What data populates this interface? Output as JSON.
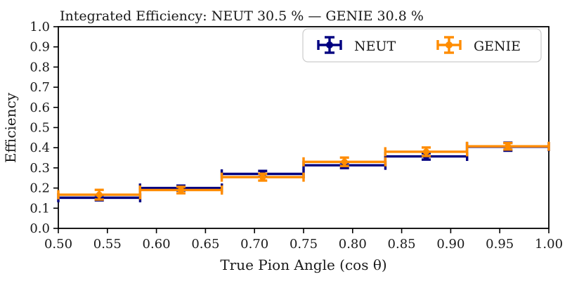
{
  "figure": {
    "background": "#ffffff",
    "text_color": "#1a1a1a"
  },
  "chart_data": {
    "type": "scatter",
    "subtype": "errorbar-histogram-bins",
    "title": "Integrated Efficiency: NEUT 30.5 % — GENIE 30.8 %",
    "xlabel": "True Pion Angle (cos θ)",
    "ylabel": "Efficiency",
    "xlim": [
      0.5,
      1.0
    ],
    "ylim": [
      0.0,
      1.0
    ],
    "grid": false,
    "legend_position": "upper right",
    "marker": "o",
    "x_ticks": [
      0.5,
      0.55,
      0.6,
      0.65,
      0.7,
      0.75,
      0.8,
      0.85,
      0.9,
      0.95,
      1.0
    ],
    "x_tick_labels": [
      "0.50",
      "0.55",
      "0.60",
      "0.65",
      "0.70",
      "0.75",
      "0.80",
      "0.85",
      "0.90",
      "0.95",
      "1.00"
    ],
    "y_ticks": [
      0.0,
      0.1,
      0.2,
      0.3,
      0.4,
      0.5,
      0.6,
      0.7,
      0.8,
      0.9,
      1.0
    ],
    "y_tick_labels": [
      "0.0",
      "0.1",
      "0.2",
      "0.3",
      "0.4",
      "0.5",
      "0.6",
      "0.7",
      "0.8",
      "0.9",
      "1.0"
    ],
    "bin_edges": [
      0.5,
      0.5833,
      0.6667,
      0.75,
      0.8333,
      0.9167,
      1.0
    ],
    "x": [
      0.5417,
      0.625,
      0.7083,
      0.7917,
      0.875,
      0.9583
    ],
    "xerr": 0.0417,
    "integrated_efficiency": {
      "NEUT": "30.5 %",
      "GENIE": "30.8 %"
    },
    "series": [
      {
        "name": "NEUT",
        "color": "#000080",
        "y": [
          0.152,
          0.2,
          0.27,
          0.313,
          0.357,
          0.405
        ],
        "yerr": [
          0.013,
          0.012,
          0.015,
          0.014,
          0.016,
          0.02
        ]
      },
      {
        "name": "GENIE",
        "color": "#ff8c00",
        "y": [
          0.167,
          0.19,
          0.254,
          0.33,
          0.38,
          0.407
        ],
        "yerr": [
          0.024,
          0.016,
          0.017,
          0.021,
          0.021,
          0.016
        ]
      }
    ]
  },
  "legend": {
    "entries": [
      {
        "label": "NEUT",
        "color": "#000080"
      },
      {
        "label": "GENIE",
        "color": "#ff8c00"
      }
    ]
  }
}
